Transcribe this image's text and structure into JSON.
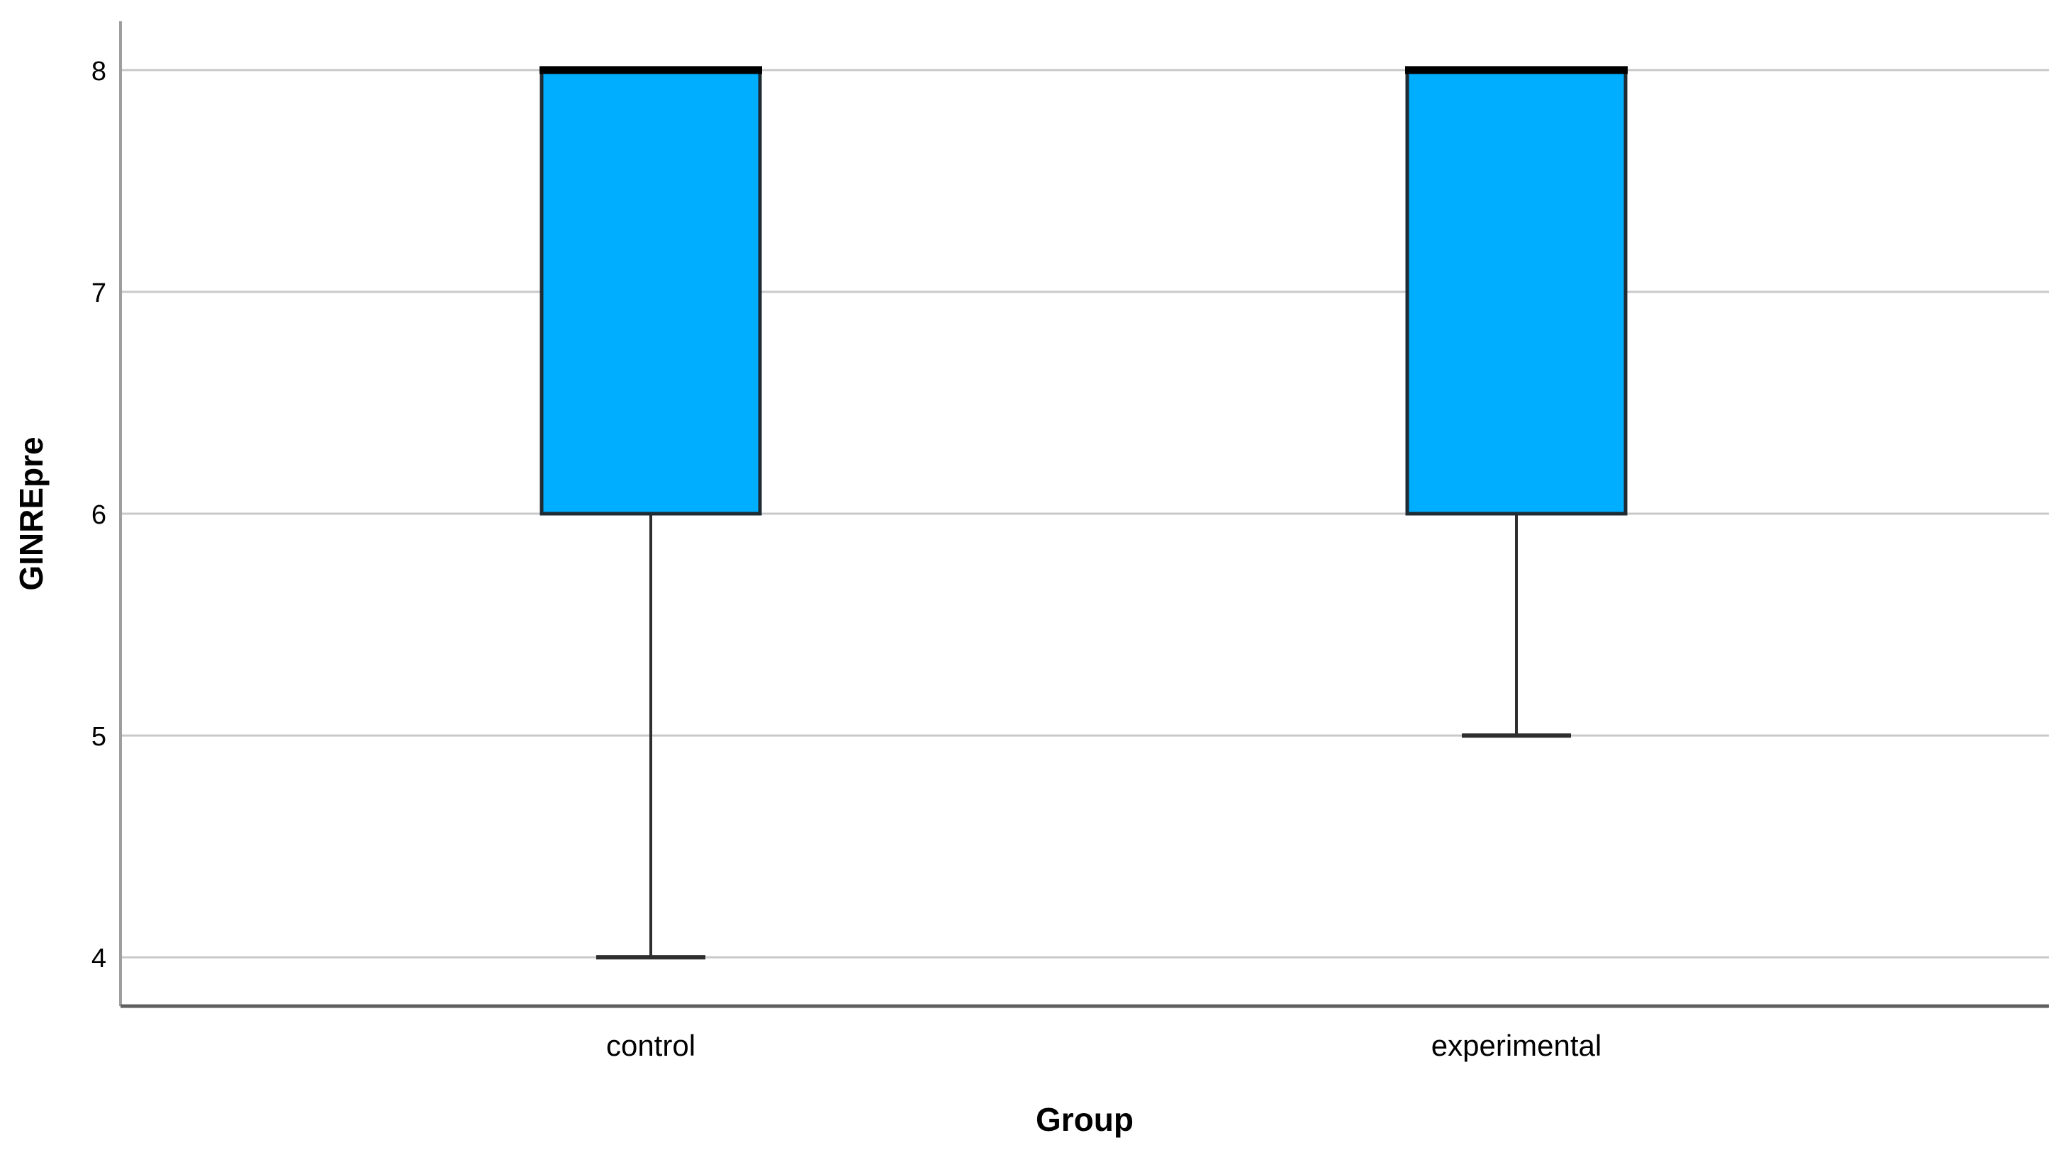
{
  "chart_data": {
    "type": "boxplot",
    "title": "",
    "xlabel": "Group",
    "ylabel": "GINREpre",
    "categories": [
      "control",
      "experimental"
    ],
    "yticks": [
      4,
      5,
      6,
      7,
      8
    ],
    "ylim": [
      3.78,
      8.22
    ],
    "grid": "horizontal",
    "legend": "none",
    "series": [
      {
        "category": "control",
        "whisker_low": 4,
        "q1": 6,
        "median": 8,
        "q3": 8,
        "whisker_high": 8,
        "outliers": []
      },
      {
        "category": "experimental",
        "whisker_low": 5,
        "q1": 6,
        "median": 8,
        "q3": 8,
        "whisker_high": 8,
        "outliers": []
      }
    ],
    "colors": {
      "box_fill": "#00AEFF",
      "box_border": "#1f2b33",
      "median": "#000000",
      "whisker": "#2e2e2e",
      "gridline": "#c9c9c9",
      "y_axis": "#9e9e9e",
      "x_axis": "#5f5f5f",
      "text": "#000000",
      "background": "#ffffff"
    }
  }
}
